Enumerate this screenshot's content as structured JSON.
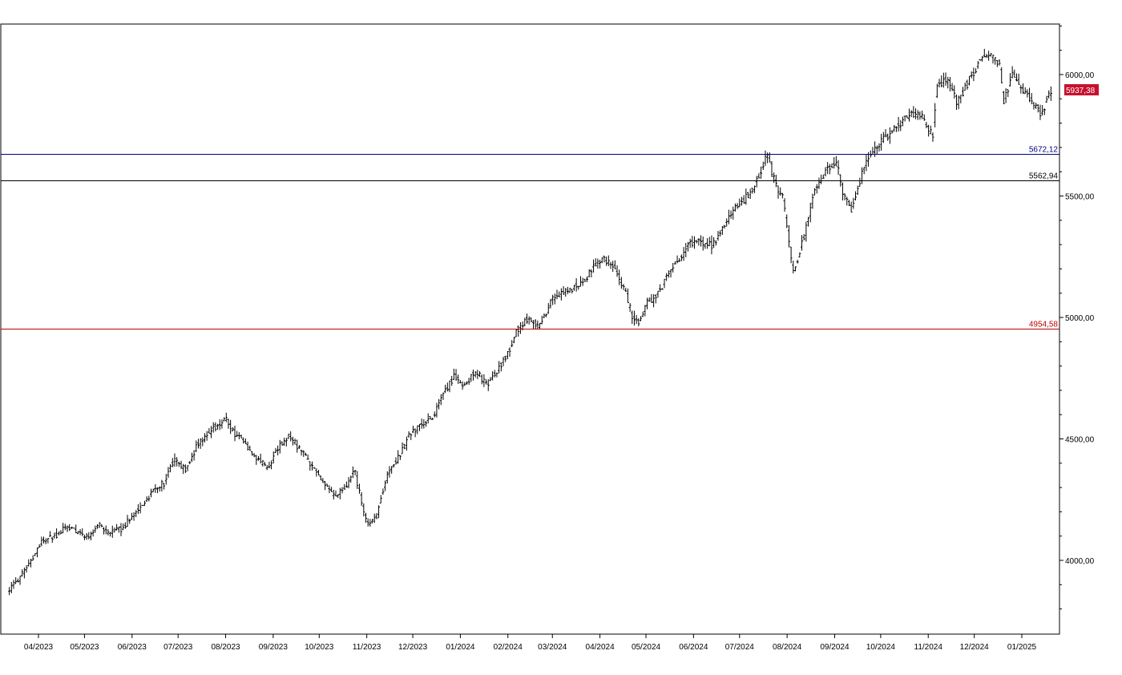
{
  "chart_data": {
    "type": "ohlc",
    "title": "",
    "xlabel": "",
    "ylabel": "",
    "ylim": [
      3800,
      6200
    ],
    "grid": false,
    "y_ticks": [
      {
        "value": 4000,
        "label": "4000,00"
      },
      {
        "value": 4500,
        "label": "4500,00"
      },
      {
        "value": 5000,
        "label": "5000,00"
      },
      {
        "value": 5500,
        "label": "5500,00"
      },
      {
        "value": 6000,
        "label": "6000,00"
      }
    ],
    "x_ticks": [
      {
        "date": "2023-04-01",
        "label": "04/2023"
      },
      {
        "date": "2023-05-01",
        "label": "05/2023"
      },
      {
        "date": "2023-06-01",
        "label": "06/2023"
      },
      {
        "date": "2023-07-01",
        "label": "07/2023"
      },
      {
        "date": "2023-08-01",
        "label": "08/2023"
      },
      {
        "date": "2023-09-01",
        "label": "09/2023"
      },
      {
        "date": "2023-10-01",
        "label": "10/2023"
      },
      {
        "date": "2023-11-01",
        "label": "11/2023"
      },
      {
        "date": "2023-12-01",
        "label": "12/2023"
      },
      {
        "date": "2024-01-01",
        "label": "01/2024"
      },
      {
        "date": "2024-02-01",
        "label": "02/2024"
      },
      {
        "date": "2024-03-01",
        "label": "03/2024"
      },
      {
        "date": "2024-04-01",
        "label": "04/2024"
      },
      {
        "date": "2024-05-01",
        "label": "05/2024"
      },
      {
        "date": "2024-06-01",
        "label": "06/2024"
      },
      {
        "date": "2024-07-01",
        "label": "07/2024"
      },
      {
        "date": "2024-08-01",
        "label": "08/2024"
      },
      {
        "date": "2024-09-01",
        "label": "09/2024"
      },
      {
        "date": "2024-10-01",
        "label": "10/2024"
      },
      {
        "date": "2024-11-01",
        "label": "11/2024"
      },
      {
        "date": "2024-12-01",
        "label": "12/2024"
      },
      {
        "date": "2025-01-01",
        "label": "01/2025"
      }
    ],
    "levels": [
      {
        "value": 5672.12,
        "label": "5672,12",
        "color": "#000080"
      },
      {
        "value": 5562.94,
        "label": "5562,94",
        "color": "#000000"
      },
      {
        "value": 4954.58,
        "label": "4954,58",
        "color": "#c00000"
      }
    ],
    "last_price": {
      "value": 5937.38,
      "label": "5937,38",
      "color": "#c8102e"
    },
    "path": [
      [
        "2023-03-13",
        3880
      ],
      [
        "2023-03-24",
        3960
      ],
      [
        "2023-04-03",
        4080
      ],
      [
        "2023-04-12",
        4100
      ],
      [
        "2023-04-20",
        4140
      ],
      [
        "2023-04-27",
        4120
      ],
      [
        "2023-05-03",
        4090
      ],
      [
        "2023-05-09",
        4150
      ],
      [
        "2023-05-17",
        4110
      ],
      [
        "2023-05-25",
        4130
      ],
      [
        "2023-06-01",
        4180
      ],
      [
        "2023-06-07",
        4220
      ],
      [
        "2023-06-15",
        4290
      ],
      [
        "2023-06-22",
        4320
      ],
      [
        "2023-06-28",
        4410
      ],
      [
        "2023-07-06",
        4370
      ],
      [
        "2023-07-13",
        4470
      ],
      [
        "2023-07-20",
        4520
      ],
      [
        "2023-07-27",
        4560
      ],
      [
        "2023-08-01",
        4585
      ],
      [
        "2023-08-07",
        4520
      ],
      [
        "2023-08-14",
        4480
      ],
      [
        "2023-08-21",
        4420
      ],
      [
        "2023-08-28",
        4380
      ],
      [
        "2023-09-05",
        4470
      ],
      [
        "2023-09-11",
        4510
      ],
      [
        "2023-09-18",
        4460
      ],
      [
        "2023-09-26",
        4390
      ],
      [
        "2023-10-03",
        4330
      ],
      [
        "2023-10-11",
        4260
      ],
      [
        "2023-10-19",
        4300
      ],
      [
        "2023-10-24",
        4370
      ],
      [
        "2023-10-30",
        4200
      ],
      [
        "2023-11-03",
        4140
      ],
      [
        "2023-11-08",
        4190
      ],
      [
        "2023-11-14",
        4350
      ],
      [
        "2023-11-22",
        4430
      ],
      [
        "2023-11-30",
        4530
      ],
      [
        "2023-12-08",
        4560
      ],
      [
        "2023-12-15",
        4600
      ],
      [
        "2023-12-22",
        4690
      ],
      [
        "2023-12-28",
        4760
      ],
      [
        "2024-01-04",
        4720
      ],
      [
        "2024-01-11",
        4780
      ],
      [
        "2024-01-18",
        4720
      ],
      [
        "2024-01-25",
        4780
      ],
      [
        "2024-02-01",
        4850
      ],
      [
        "2024-02-08",
        4960
      ],
      [
        "2024-02-15",
        5000
      ],
      [
        "2024-02-22",
        4960
      ],
      [
        "2024-02-29",
        5070
      ],
      [
        "2024-03-07",
        5100
      ],
      [
        "2024-03-14",
        5120
      ],
      [
        "2024-03-21",
        5150
      ],
      [
        "2024-03-28",
        5210
      ],
      [
        "2024-04-04",
        5240
      ],
      [
        "2024-04-11",
        5200
      ],
      [
        "2024-04-18",
        5100
      ],
      [
        "2024-04-22",
        5000
      ],
      [
        "2024-04-26",
        4980
      ],
      [
        "2024-05-02",
        5060
      ],
      [
        "2024-05-09",
        5100
      ],
      [
        "2024-05-16",
        5180
      ],
      [
        "2024-05-23",
        5250
      ],
      [
        "2024-05-30",
        5300
      ],
      [
        "2024-06-06",
        5320
      ],
      [
        "2024-06-13",
        5290
      ],
      [
        "2024-06-20",
        5360
      ],
      [
        "2024-06-26",
        5430
      ],
      [
        "2024-07-03",
        5480
      ],
      [
        "2024-07-09",
        5520
      ],
      [
        "2024-07-16",
        5620
      ],
      [
        "2024-07-19",
        5670
      ],
      [
        "2024-07-24",
        5560
      ],
      [
        "2024-07-30",
        5480
      ],
      [
        "2024-08-05",
        5180
      ],
      [
        "2024-08-12",
        5330
      ],
      [
        "2024-08-19",
        5520
      ],
      [
        "2024-08-26",
        5600
      ],
      [
        "2024-09-02",
        5640
      ],
      [
        "2024-09-07",
        5500
      ],
      [
        "2024-09-12",
        5440
      ],
      [
        "2024-09-17",
        5560
      ],
      [
        "2024-09-24",
        5670
      ],
      [
        "2024-10-01",
        5720
      ],
      [
        "2024-10-08",
        5760
      ],
      [
        "2024-10-14",
        5800
      ],
      [
        "2024-10-21",
        5850
      ],
      [
        "2024-10-28",
        5820
      ],
      [
        "2024-11-04",
        5740
      ],
      [
        "2024-11-07",
        5960
      ],
      [
        "2024-11-14",
        5980
      ],
      [
        "2024-11-20",
        5880
      ],
      [
        "2024-11-27",
        5970
      ],
      [
        "2024-12-05",
        6060
      ],
      [
        "2024-12-11",
        6080
      ],
      [
        "2024-12-18",
        6050
      ],
      [
        "2024-12-20",
        5880
      ],
      [
        "2024-12-26",
        6000
      ],
      [
        "2025-01-02",
        5940
      ],
      [
        "2025-01-10",
        5870
      ],
      [
        "2025-01-14",
        5830
      ],
      [
        "2025-01-17",
        5900
      ],
      [
        "2025-01-21",
        5937.38
      ]
    ]
  }
}
